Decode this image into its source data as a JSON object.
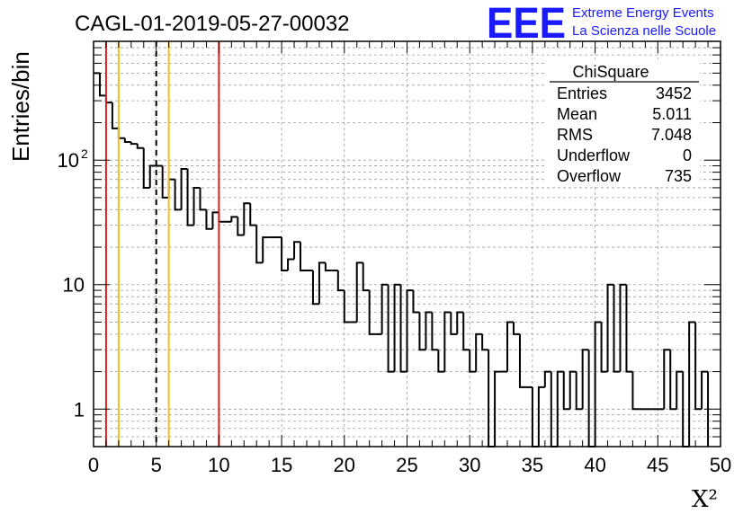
{
  "header": {
    "title": "CAGL-01-2019-05-27-00032",
    "logo_letters": "EEE",
    "logo_line1": "Extreme Energy Events",
    "logo_line2": "La Scienza nelle Scuole"
  },
  "stats_box": {
    "name": "ChiSquare",
    "rows": [
      {
        "label": "Entries",
        "value": "3452"
      },
      {
        "label": "Mean",
        "value": "5.011"
      },
      {
        "label": "RMS",
        "value": "7.048"
      },
      {
        "label": "Underflow",
        "value": "0"
      },
      {
        "label": "Overflow",
        "value": "735"
      }
    ]
  },
  "colors": {
    "red_line": "#e02020",
    "yellow_line": "#f0c020",
    "histogram": "#000000",
    "logo_blue": "#1a1aff"
  },
  "chart_data": {
    "type": "histogram",
    "xlabel": "X²",
    "ylabel": "Entries/bin",
    "xlim": [
      0,
      50
    ],
    "ylim": [
      0.5,
      900
    ],
    "yscale": "log",
    "grid": true,
    "x_ticks": [
      "0",
      "5",
      "10",
      "15",
      "20",
      "25",
      "30",
      "35",
      "40",
      "45",
      "50"
    ],
    "y_ticks": [
      "1",
      "10",
      "10²"
    ],
    "bin_width": 0.5,
    "values": [
      500,
      330,
      290,
      180,
      150,
      140,
      135,
      125,
      60,
      90,
      90,
      50,
      70,
      40,
      85,
      30,
      60,
      40,
      28,
      38,
      32,
      32,
      35,
      25,
      45,
      30,
      15,
      24,
      24,
      24,
      13,
      16,
      22,
      13,
      13,
      7,
      15,
      13,
      13,
      9,
      5,
      5,
      15,
      9,
      4,
      4,
      10,
      2,
      10,
      2,
      9,
      6,
      3,
      6,
      3,
      2,
      6,
      4,
      6,
      3,
      2,
      4,
      3,
      0.5,
      2,
      2,
      5,
      4,
      1.5,
      1.5,
      0,
      1.5,
      2,
      0.5,
      2,
      1,
      2,
      1,
      3,
      0,
      5,
      2,
      10,
      2,
      10,
      2,
      1,
      1,
      1,
      1,
      1,
      3,
      1,
      2,
      0,
      5,
      1,
      2
    ],
    "vertical_lines": [
      {
        "x": 1,
        "color": "red",
        "style": "solid"
      },
      {
        "x": 2,
        "color": "yellow",
        "style": "solid"
      },
      {
        "x": 5,
        "color": "black",
        "style": "dashed"
      },
      {
        "x": 6,
        "color": "yellow",
        "style": "solid"
      },
      {
        "x": 10,
        "color": "red",
        "style": "solid"
      }
    ]
  }
}
